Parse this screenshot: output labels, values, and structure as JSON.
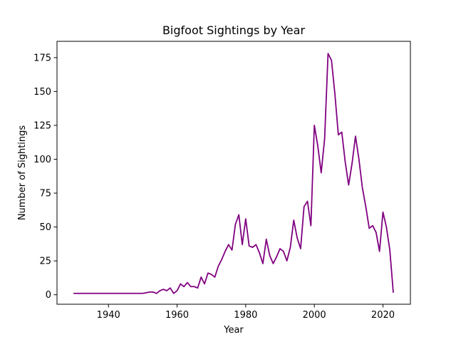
{
  "chart_data": {
    "type": "line",
    "title": "Bigfoot Sightings by Year",
    "xlabel": "Year",
    "ylabel": "Number of Sightings",
    "xlim": [
      1925,
      2028
    ],
    "ylim": [
      -7,
      187
    ],
    "xticks": [
      1940,
      1960,
      1980,
      2000,
      2020
    ],
    "yticks": [
      0,
      25,
      50,
      75,
      100,
      125,
      150,
      175
    ],
    "grid": false,
    "legend": "none",
    "series": [
      {
        "color": "#800080",
        "x": [
          1930,
          1931,
          1932,
          1933,
          1934,
          1935,
          1936,
          1937,
          1938,
          1939,
          1940,
          1941,
          1942,
          1943,
          1944,
          1945,
          1946,
          1947,
          1948,
          1949,
          1950,
          1951,
          1952,
          1953,
          1954,
          1955,
          1956,
          1957,
          1958,
          1959,
          1960,
          1961,
          1962,
          1963,
          1964,
          1965,
          1966,
          1967,
          1968,
          1969,
          1970,
          1971,
          1972,
          1973,
          1974,
          1975,
          1976,
          1977,
          1978,
          1979,
          1980,
          1981,
          1982,
          1983,
          1984,
          1985,
          1986,
          1987,
          1988,
          1989,
          1990,
          1991,
          1992,
          1993,
          1994,
          1995,
          1996,
          1997,
          1998,
          1999,
          2000,
          2001,
          2002,
          2003,
          2004,
          2005,
          2006,
          2007,
          2008,
          2009,
          2010,
          2011,
          2012,
          2013,
          2014,
          2015,
          2016,
          2017,
          2018,
          2019,
          2020,
          2021,
          2022,
          2023
        ],
        "y": [
          1,
          1,
          1,
          1,
          1,
          1,
          1,
          1,
          1,
          1,
          1,
          1,
          1,
          1,
          1,
          1,
          1,
          1,
          1,
          1,
          1,
          1.5,
          2,
          2,
          1,
          3,
          4,
          3,
          5,
          1,
          3,
          8,
          6,
          9,
          6,
          6,
          5,
          13,
          8,
          16,
          15,
          13,
          21,
          26,
          32,
          37,
          33,
          52,
          59,
          37,
          56,
          36,
          35,
          37,
          31,
          23,
          41,
          29,
          23,
          28,
          34,
          32,
          25,
          35,
          55,
          42,
          34,
          65,
          69,
          51,
          125,
          110,
          90,
          115,
          178,
          173,
          148,
          118,
          120,
          98,
          81,
          97,
          117,
          100,
          79,
          65,
          49,
          51,
          46,
          32,
          61,
          50,
          33,
          2
        ]
      }
    ]
  }
}
